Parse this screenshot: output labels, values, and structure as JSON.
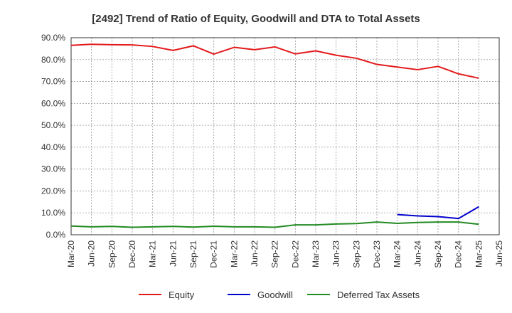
{
  "chart_data": {
    "type": "line",
    "title": "[2492]  Trend of Ratio of Equity, Goodwill and DTA to Total Assets",
    "xlabel": "",
    "ylabel": "",
    "ylim": [
      0,
      90
    ],
    "yticks": [
      0,
      10,
      20,
      30,
      40,
      50,
      60,
      70,
      80,
      90
    ],
    "ytick_labels": [
      "0.0%",
      "10.0%",
      "20.0%",
      "30.0%",
      "40.0%",
      "50.0%",
      "60.0%",
      "70.0%",
      "80.0%",
      "90.0%"
    ],
    "xtick_labels": [
      "Mar-20",
      "Jun-20",
      "Sep-20",
      "Dec-20",
      "Mar-21",
      "Jun-21",
      "Sep-21",
      "Dec-21",
      "Mar-22",
      "Jun-22",
      "Sep-22",
      "Dec-22",
      "Mar-23",
      "Jun-23",
      "Sep-23",
      "Dec-23",
      "Mar-24",
      "Jun-24",
      "Sep-24",
      "Dec-24",
      "Mar-25",
      "Jun-25"
    ],
    "grid": true,
    "legend_position": "bottom",
    "series": [
      {
        "name": "Equity",
        "color": "#e31a1c",
        "x": [
          "Mar-20",
          "Jun-20",
          "Sep-20",
          "Dec-20",
          "Mar-21",
          "Jun-21",
          "Sep-21",
          "Dec-21",
          "Mar-22",
          "Jun-22",
          "Sep-22",
          "Dec-22",
          "Mar-23",
          "Jun-23",
          "Sep-23",
          "Dec-23",
          "Mar-24",
          "Jun-24",
          "Sep-24",
          "Dec-24",
          "Mar-25"
        ],
        "values": [
          86.5,
          87.0,
          86.8,
          86.7,
          86.0,
          84.2,
          86.3,
          82.5,
          85.6,
          84.5,
          85.8,
          82.6,
          84.0,
          82.0,
          80.6,
          77.8,
          76.6,
          75.4,
          76.9,
          73.5,
          71.5
        ]
      },
      {
        "name": "Goodwill",
        "color": "#0000cc",
        "x": [
          "Mar-24",
          "Jun-24",
          "Sep-24",
          "Dec-24",
          "Mar-25"
        ],
        "values": [
          9.2,
          8.6,
          8.3,
          7.4,
          12.8
        ]
      },
      {
        "name": "Deferred Tax Assets",
        "color": "#228b22",
        "x": [
          "Mar-20",
          "Jun-20",
          "Sep-20",
          "Dec-20",
          "Mar-21",
          "Jun-21",
          "Sep-21",
          "Dec-21",
          "Mar-22",
          "Jun-22",
          "Sep-22",
          "Dec-22",
          "Mar-23",
          "Jun-23",
          "Sep-23",
          "Dec-23",
          "Mar-24",
          "Jun-24",
          "Sep-24",
          "Dec-24",
          "Mar-25"
        ],
        "values": [
          4.0,
          3.6,
          3.8,
          3.4,
          3.6,
          3.8,
          3.5,
          3.9,
          3.6,
          3.6,
          3.4,
          4.5,
          4.5,
          4.9,
          5.1,
          5.8,
          5.2,
          5.6,
          5.8,
          5.8,
          4.8
        ]
      }
    ]
  }
}
